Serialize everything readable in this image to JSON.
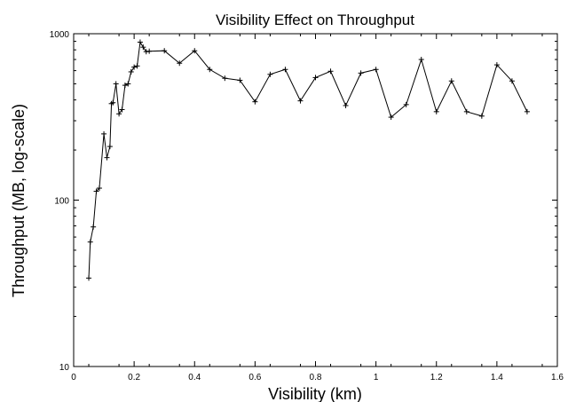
{
  "chart_data": {
    "type": "line",
    "title": "Visibility Effect on Throughput",
    "xlabel": "Visibility (km)",
    "ylabel": "Throughput (MB, log-scale)",
    "xlim": [
      0,
      1.6
    ],
    "ylim": [
      10,
      1000
    ],
    "y_scale": "log",
    "grid": false,
    "x_ticks": [
      "0",
      "0.2",
      "0.4",
      "0.6",
      "0.8",
      "1",
      "1.2",
      "1.4",
      "1.6"
    ],
    "y_ticks": [
      "10",
      "100",
      "1000"
    ],
    "series": [
      {
        "marker": "plus",
        "color": "#000000",
        "x": [
          0.05,
          0.055,
          0.065,
          0.075,
          0.085,
          0.1,
          0.11,
          0.12,
          0.125,
          0.13,
          0.14,
          0.15,
          0.16,
          0.17,
          0.18,
          0.19,
          0.2,
          0.21,
          0.22,
          0.23,
          0.24,
          0.25,
          0.3,
          0.35,
          0.4,
          0.45,
          0.5,
          0.55,
          0.6,
          0.65,
          0.7,
          0.75,
          0.8,
          0.85,
          0.9,
          0.95,
          1.0,
          1.05,
          1.1,
          1.15,
          1.2,
          1.25,
          1.3,
          1.35,
          1.4,
          1.45,
          1.5
        ],
        "y": [
          34,
          56,
          69,
          113,
          118,
          250,
          180,
          210,
          380,
          385,
          500,
          330,
          350,
          490,
          500,
          590,
          630,
          640,
          890,
          830,
          780,
          785,
          790,
          665,
          790,
          610,
          540,
          525,
          390,
          570,
          610,
          395,
          545,
          595,
          370,
          580,
          610,
          315,
          375,
          700,
          340,
          520,
          340,
          320,
          650,
          520,
          340
        ]
      }
    ]
  }
}
